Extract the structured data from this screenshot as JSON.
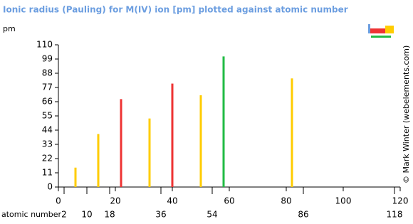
{
  "chart_data": {
    "type": "bar",
    "title": "Ionic radius (Pauling) for M(IV) ion [pm] plotted against atomic number",
    "y_label": "pm",
    "x_label": "atomic number",
    "credit": "© Mark Winter (webelements.com)",
    "x": [
      6,
      14,
      22,
      32,
      40,
      50,
      58,
      82
    ],
    "values": [
      15,
      41,
      68,
      53,
      80,
      71,
      101,
      84
    ],
    "colors": [
      "#ffcc00",
      "#ffcc00",
      "#ee3333",
      "#ffcc00",
      "#ee3333",
      "#ffcc00",
      "#22bb44",
      "#ffcc00"
    ],
    "xlim": [
      0,
      120
    ],
    "xticks": [
      0,
      20,
      40,
      60,
      80,
      100,
      120
    ],
    "x2ticks": [
      2,
      10,
      18,
      36,
      54,
      86,
      118
    ],
    "ylim": [
      0,
      110
    ],
    "yticks": [
      0,
      11,
      22,
      33,
      44,
      55,
      66,
      77,
      88,
      99,
      110
    ]
  }
}
